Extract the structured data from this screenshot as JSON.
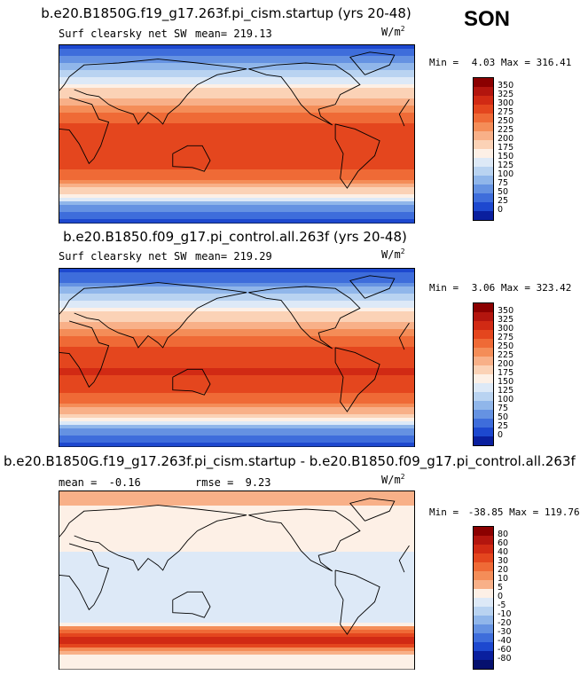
{
  "season": "SON",
  "panels": [
    {
      "id": "top",
      "title": "b.e20.B1850G.f19_g17.263f.pi_cism.startup (yrs 20-48)",
      "variable": "Surf clearsky net SW",
      "stat1_label": "mean=",
      "stat1_value": "219.13",
      "units_base": "W/m",
      "units_sup": "2",
      "min_label": "Min =",
      "min_value": "4.03",
      "max_label": "Max =",
      "max_value": "316.41",
      "kind": "abs"
    },
    {
      "id": "middle",
      "title": "b.e20.B1850.f09_g17.pi_control.all.263f (yrs 20-48)",
      "variable": "Surf clearsky net SW",
      "stat1_label": "mean=",
      "stat1_value": "219.29",
      "units_base": "W/m",
      "units_sup": "2",
      "min_label": "Min =",
      "min_value": "3.06",
      "max_label": "Max =",
      "max_value": "323.42",
      "kind": "abs"
    },
    {
      "id": "bottom",
      "title": "b.e20.B1850G.f19_g17.263f.pi_cism.startup - b.e20.B1850.f09_g17.pi_control.all.263f",
      "stat1_label": "mean =",
      "stat1_value": "-0.16",
      "stat2_label": "rmse =",
      "stat2_value": "9.23",
      "units_base": "W/m",
      "units_sup": "2",
      "min_label": "Min =",
      "min_value": "-38.85",
      "max_label": "Max =",
      "max_value": "119.76",
      "kind": "diff"
    }
  ],
  "colorbars": {
    "abs": {
      "labels": [
        "350",
        "325",
        "300",
        "275",
        "250",
        "225",
        "200",
        "175",
        "150",
        "125",
        "100",
        "75",
        "50",
        "25",
        "0"
      ],
      "colors": [
        "#8b0000",
        "#b3150e",
        "#d12a14",
        "#e4461e",
        "#ef6a36",
        "#f48d58",
        "#f8b088",
        "#fbd2b6",
        "#fdf0e6",
        "#dde9f7",
        "#b9d3f1",
        "#90b6ea",
        "#6592e2",
        "#3e6ddb",
        "#1d48cf",
        "#0a1f9e"
      ]
    },
    "diff": {
      "labels": [
        "80",
        "60",
        "40",
        "30",
        "20",
        "10",
        "5",
        "0",
        "-5",
        "-10",
        "-20",
        "-30",
        "-40",
        "-60",
        "-80"
      ],
      "colors": [
        "#8b0000",
        "#b3150e",
        "#d12a14",
        "#e4461e",
        "#ef6a36",
        "#f48d58",
        "#f8b088",
        "#fdf0e6",
        "#dde9f7",
        "#b9d3f1",
        "#90b6ea",
        "#6592e2",
        "#3e6ddb",
        "#1d48cf",
        "#0a1f9e",
        "#05106e"
      ]
    }
  },
  "chart_data": [
    {
      "type": "heatmap",
      "title": "b.e20.B1850G.f19_g17.263f.pi_cism.startup (yrs 20-48)",
      "variable": "Surf clearsky net SW",
      "units": "W/m2",
      "mean": 219.13,
      "min": 4.03,
      "max": 316.41,
      "zonal_profile": {
        "lat": [
          90,
          75,
          60,
          45,
          30,
          15,
          0,
          -15,
          -30,
          -45,
          -60,
          -75,
          -90
        ],
        "value": [
          15,
          60,
          120,
          175,
          225,
          265,
          290,
          300,
          290,
          250,
          180,
          60,
          15
        ]
      },
      "contour_levels": [
        0,
        25,
        50,
        75,
        100,
        125,
        150,
        175,
        200,
        225,
        250,
        275,
        300,
        325,
        350
      ]
    },
    {
      "type": "heatmap",
      "title": "b.e20.B1850.f09_g17.pi_control.all.263f (yrs 20-48)",
      "variable": "Surf clearsky net SW",
      "units": "W/m2",
      "mean": 219.29,
      "min": 3.06,
      "max": 323.42,
      "zonal_profile": {
        "lat": [
          90,
          75,
          60,
          45,
          30,
          15,
          0,
          -15,
          -30,
          -45,
          -60,
          -75,
          -90
        ],
        "value": [
          12,
          55,
          118,
          175,
          225,
          265,
          292,
          302,
          292,
          252,
          182,
          60,
          12
        ]
      },
      "contour_levels": [
        0,
        25,
        50,
        75,
        100,
        125,
        150,
        175,
        200,
        225,
        250,
        275,
        300,
        325,
        350
      ]
    },
    {
      "type": "heatmap",
      "title": "b.e20.B1850G.f19_g17.263f.pi_cism.startup - b.e20.B1850.f09_g17.pi_control.all.263f",
      "units": "W/m2",
      "mean": -0.16,
      "rmse": 9.23,
      "min": -38.85,
      "max": 119.76,
      "zonal_profile": {
        "lat": [
          90,
          75,
          60,
          45,
          30,
          15,
          0,
          -15,
          -30,
          -45,
          -60,
          -75,
          -90
        ],
        "value": [
          10,
          5,
          2,
          0,
          0,
          -2,
          -1,
          -2,
          -1,
          0,
          50,
          5,
          0
        ]
      },
      "contour_levels": [
        -80,
        -60,
        -40,
        -30,
        -20,
        -10,
        -5,
        0,
        5,
        10,
        20,
        30,
        40,
        60,
        80
      ]
    }
  ]
}
